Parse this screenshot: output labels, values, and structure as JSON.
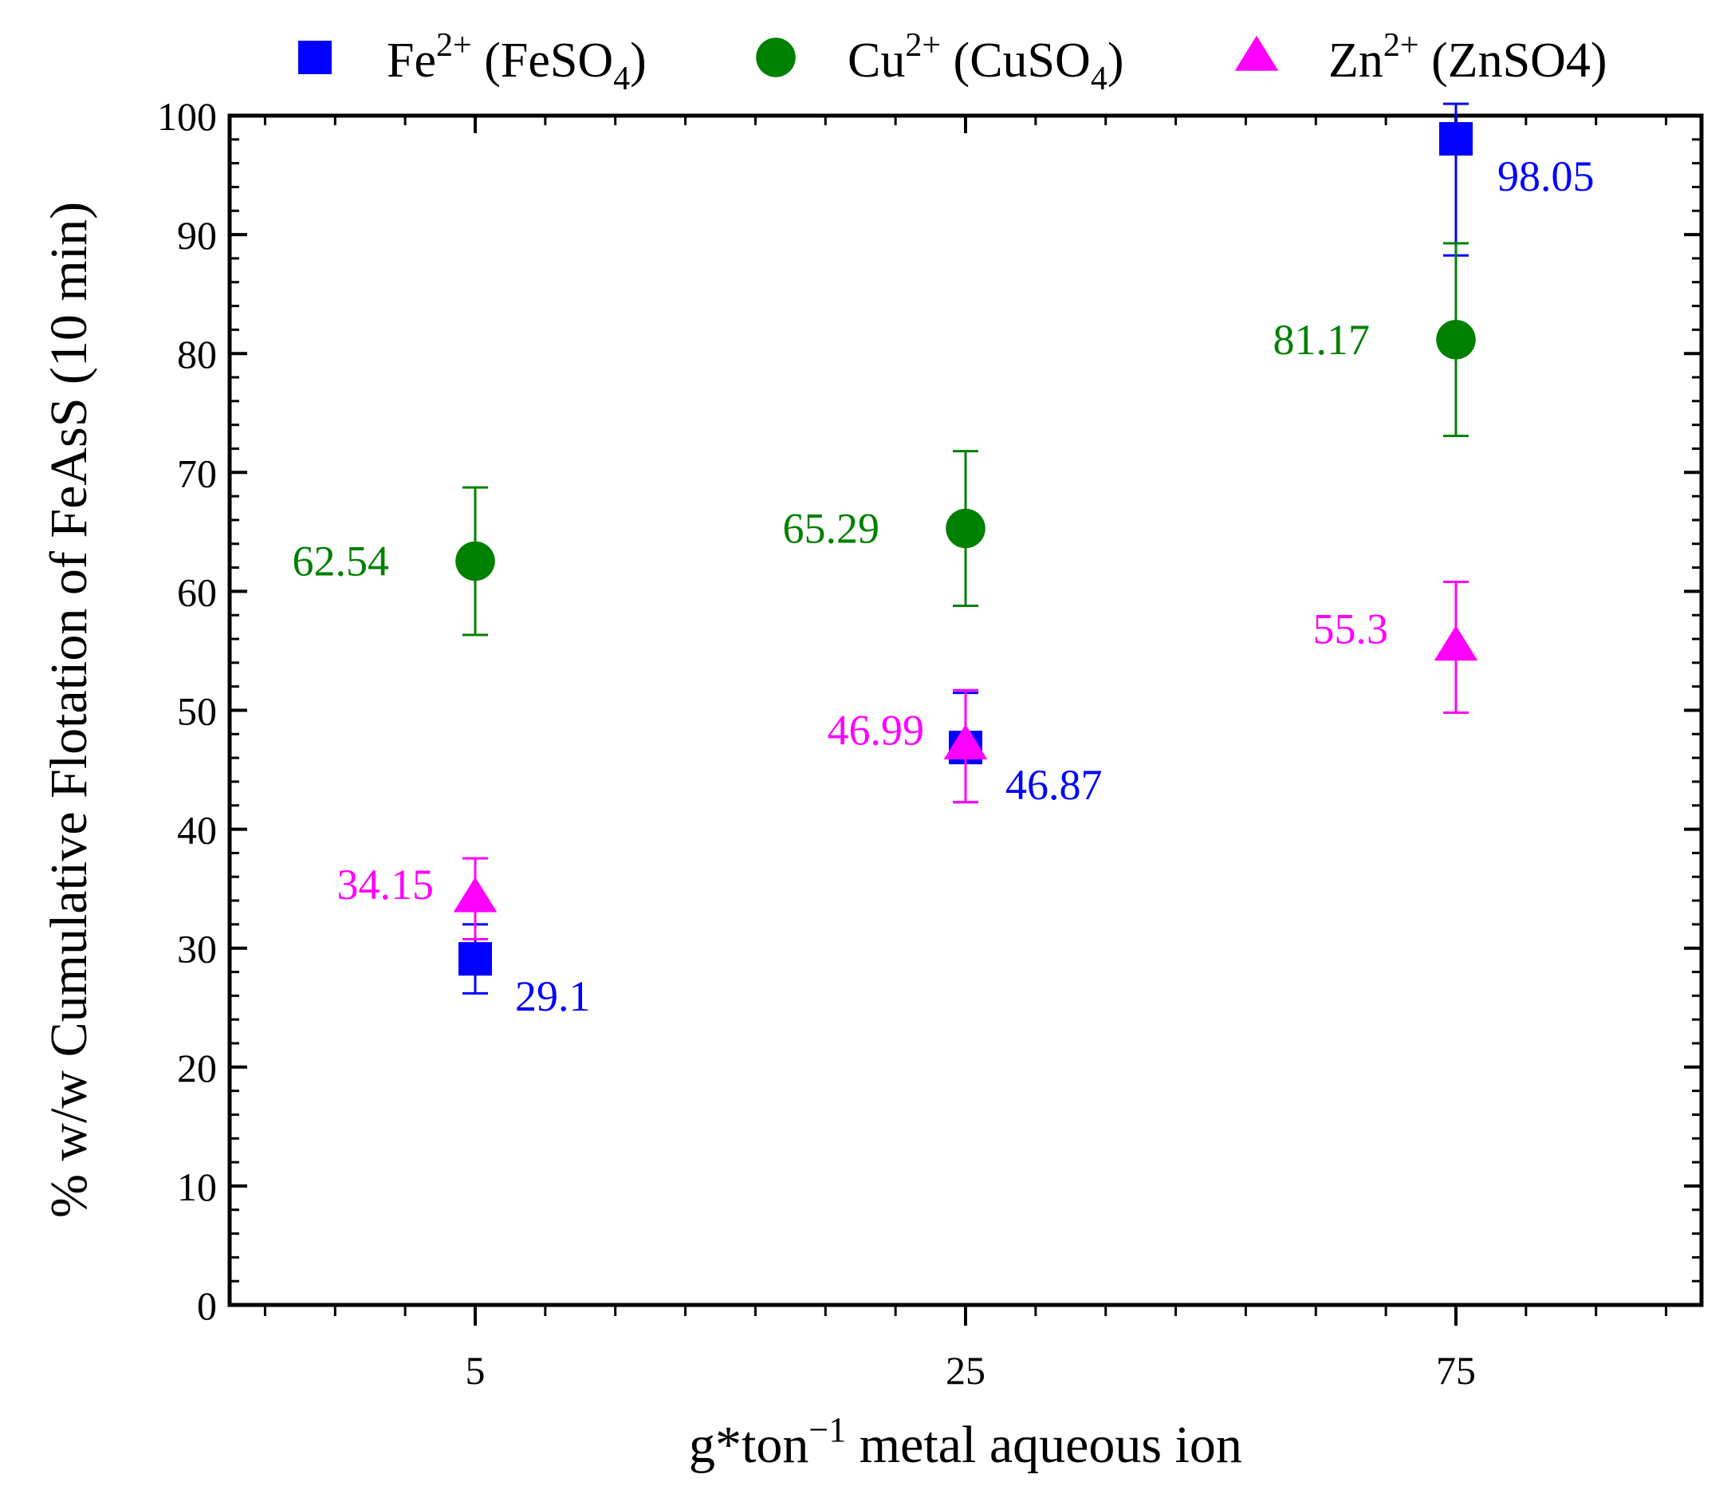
{
  "chart_data": {
    "type": "scatter",
    "title": "",
    "xlabel": "g*ton",
    "xlabel_sup": "−1",
    "xlabel_rest": " metal aqueous ion",
    "ylabel": "% w/w Cumulative Flotation of FeAsS (10 min)",
    "categories": [
      "5",
      "25",
      "75"
    ],
    "ylim": [
      0,
      100
    ],
    "yticks": [
      "0",
      "10",
      "20",
      "30",
      "40",
      "50",
      "60",
      "70",
      "80",
      "90",
      "100"
    ],
    "grid": false,
    "legend_position": "top",
    "series": [
      {
        "legend_main": "Fe",
        "legend_sup": "2+",
        "legend_paren_a": "(FeSO",
        "legend_sub": "4",
        "legend_paren_b": ")",
        "marker": "square",
        "color": "#0000ff",
        "values": [
          29.1,
          46.87,
          98.05
        ],
        "errors": [
          2.9,
          4.6,
          9.8
        ],
        "labels": [
          "29.1",
          "46.87",
          "98.05"
        ]
      },
      {
        "legend_main": "Cu",
        "legend_sup": "2+",
        "legend_paren_a": "(CuSO",
        "legend_sub": "4",
        "legend_paren_b": ")",
        "marker": "circle",
        "color": "#008000",
        "values": [
          62.54,
          65.29,
          81.17
        ],
        "errors": [
          6.2,
          6.5,
          8.1
        ],
        "labels": [
          "62.54",
          "65.29",
          "81.17"
        ]
      },
      {
        "legend_main": "Zn",
        "legend_sup": "2+",
        "legend_paren_a": "(ZnSO4)",
        "legend_sub": "",
        "legend_paren_b": "",
        "marker": "triangle",
        "color": "#ff00ff",
        "values": [
          34.15,
          46.99,
          55.3
        ],
        "errors": [
          3.4,
          4.7,
          5.5
        ],
        "labels": [
          "34.15",
          "46.99",
          "55.3"
        ]
      }
    ]
  }
}
